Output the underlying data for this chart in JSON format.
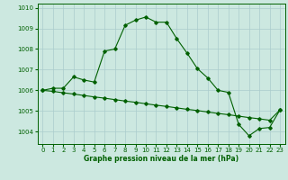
{
  "xlabel": "Graphe pression niveau de la mer (hPa)",
  "background_color": "#cce8e0",
  "grid_color": "#aacccc",
  "line_color": "#006000",
  "ylim": [
    1003.4,
    1010.2
  ],
  "xlim": [
    -0.5,
    23.5
  ],
  "yticks": [
    1004,
    1005,
    1006,
    1007,
    1008,
    1009,
    1010
  ],
  "xticks": [
    0,
    1,
    2,
    3,
    4,
    5,
    6,
    7,
    8,
    9,
    10,
    11,
    12,
    13,
    14,
    15,
    16,
    17,
    18,
    19,
    20,
    21,
    22,
    23
  ],
  "series1_x": [
    0,
    1,
    2,
    3,
    4,
    5,
    6,
    7,
    8,
    9,
    10,
    11,
    12,
    13,
    14,
    15,
    16,
    17,
    18,
    19,
    20,
    21,
    22,
    23
  ],
  "series1_y": [
    1006.0,
    1006.1,
    1006.1,
    1006.65,
    1006.5,
    1006.4,
    1007.9,
    1008.0,
    1009.15,
    1009.4,
    1009.55,
    1009.3,
    1009.3,
    1008.5,
    1007.8,
    1007.05,
    1006.6,
    1006.0,
    1005.9,
    1004.35,
    1003.8,
    1004.15,
    1004.2,
    1005.05
  ],
  "series2_x": [
    0,
    1,
    2,
    3,
    4,
    5,
    6,
    7,
    8,
    9,
    10,
    11,
    12,
    13,
    14,
    15,
    16,
    17,
    18,
    19,
    20,
    21,
    22,
    23
  ],
  "series2_y": [
    1006.0,
    1005.95,
    1005.88,
    1005.82,
    1005.75,
    1005.68,
    1005.62,
    1005.55,
    1005.48,
    1005.42,
    1005.35,
    1005.28,
    1005.22,
    1005.15,
    1005.08,
    1005.02,
    1004.95,
    1004.88,
    1004.82,
    1004.75,
    1004.68,
    1004.62,
    1004.55,
    1005.05
  ]
}
